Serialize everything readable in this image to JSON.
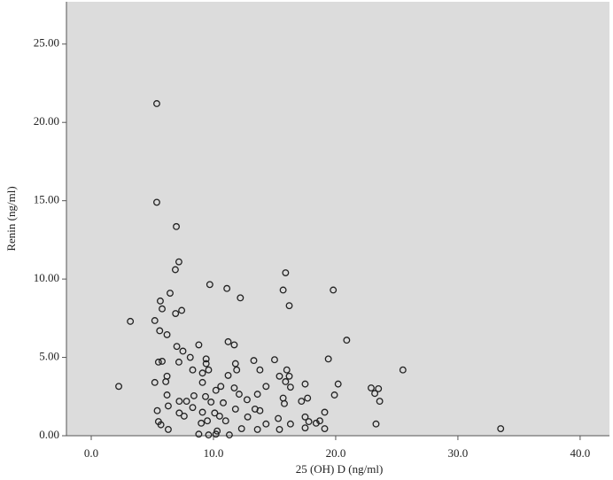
{
  "chart_data": {
    "type": "scatter",
    "x_label": "25 (OH) D (ng/ml)",
    "y_label": "Renin (ng/ml)",
    "xlim": [
      -2.03,
      42.4
    ],
    "ylim": [
      0,
      27.7
    ],
    "xticks": [
      {
        "value": 0,
        "label": "0.0"
      },
      {
        "value": 10,
        "label": "10.0"
      },
      {
        "value": 20,
        "label": "20.0"
      },
      {
        "value": 30,
        "label": "30.0"
      },
      {
        "value": 40,
        "label": "40.0"
      }
    ],
    "yticks": [
      {
        "value": 0,
        "label": "0.00"
      },
      {
        "value": 5,
        "label": "5.00"
      },
      {
        "value": 10,
        "label": "10.00"
      },
      {
        "value": 15,
        "label": "15.00"
      },
      {
        "value": 20,
        "label": "20.00"
      },
      {
        "value": 25,
        "label": "25.00"
      }
    ],
    "color": "#222222",
    "background": "#dcdcdc",
    "x": [
      5.36,
      5.36,
      6.96,
      7.17,
      6.88,
      9.7,
      11.1,
      15.9,
      15.7,
      19.8,
      12.2,
      16.2,
      6.45,
      5.65,
      5.8,
      7.4,
      6.9,
      3.2,
      5.2,
      5.6,
      6.2,
      20.9,
      11.2,
      11.7,
      8.8,
      7.0,
      7.5,
      19.4,
      8.1,
      9.4,
      13.3,
      15.0,
      5.8,
      5.5,
      7.17,
      9.4,
      11.8,
      25.5,
      8.3,
      9.6,
      11.9,
      13.8,
      16.0,
      9.1,
      11.2,
      15.4,
      16.2,
      6.2,
      6.1,
      5.2,
      9.1,
      15.9,
      17.5,
      20.2,
      2.25,
      10.6,
      16.3,
      11.7,
      14.3,
      10.2,
      22.9,
      23.2,
      23.5,
      12.1,
      19.9,
      13.6,
      6.2,
      8.4,
      17.7,
      9.35,
      15.7,
      7.8,
      12.75,
      17.2,
      23.6,
      7.2,
      10.8,
      9.8,
      15.8,
      6.3,
      8.3,
      13.4,
      11.8,
      19.1,
      5.4,
      9.1,
      10.1,
      7.2,
      13.8,
      10.5,
      7.6,
      12.8,
      17.5,
      15.3,
      11.0,
      9.5,
      9.0,
      5.5,
      17.8,
      18.7,
      14.3,
      16.3,
      23.3,
      5.7,
      18.4,
      12.3,
      17.5,
      19.1,
      33.5,
      6.3,
      15.4,
      10.3,
      8.8,
      10.2,
      11.3,
      9.6,
      13.6
    ],
    "values": [
      21.2,
      14.9,
      13.35,
      11.1,
      10.6,
      9.65,
      9.4,
      10.4,
      9.3,
      9.3,
      8.8,
      8.3,
      9.1,
      8.6,
      8.1,
      8.0,
      7.8,
      7.3,
      7.35,
      6.7,
      6.45,
      6.1,
      6.0,
      5.8,
      5.8,
      5.7,
      5.4,
      4.9,
      5.0,
      4.9,
      4.8,
      4.85,
      4.75,
      4.7,
      4.7,
      4.6,
      4.6,
      4.2,
      4.2,
      4.2,
      4.2,
      4.2,
      4.2,
      4.0,
      3.85,
      3.8,
      3.8,
      3.8,
      3.45,
      3.4,
      3.4,
      3.45,
      3.3,
      3.3,
      3.15,
      3.15,
      3.1,
      3.05,
      3.15,
      2.9,
      3.05,
      2.7,
      3.0,
      2.65,
      2.6,
      2.65,
      2.6,
      2.55,
      2.4,
      2.5,
      2.4,
      2.2,
      2.3,
      2.2,
      2.2,
      2.2,
      2.1,
      2.15,
      2.05,
      1.9,
      1.8,
      1.7,
      1.7,
      1.5,
      1.6,
      1.5,
      1.45,
      1.45,
      1.6,
      1.25,
      1.25,
      1.2,
      1.2,
      1.1,
      0.95,
      0.95,
      0.8,
      0.9,
      0.9,
      0.95,
      0.75,
      0.75,
      0.75,
      0.7,
      0.8,
      0.45,
      0.5,
      0.45,
      0.45,
      0.4,
      0.4,
      0.3,
      0.1,
      0.1,
      0.05,
      0.05,
      0.4
    ]
  }
}
